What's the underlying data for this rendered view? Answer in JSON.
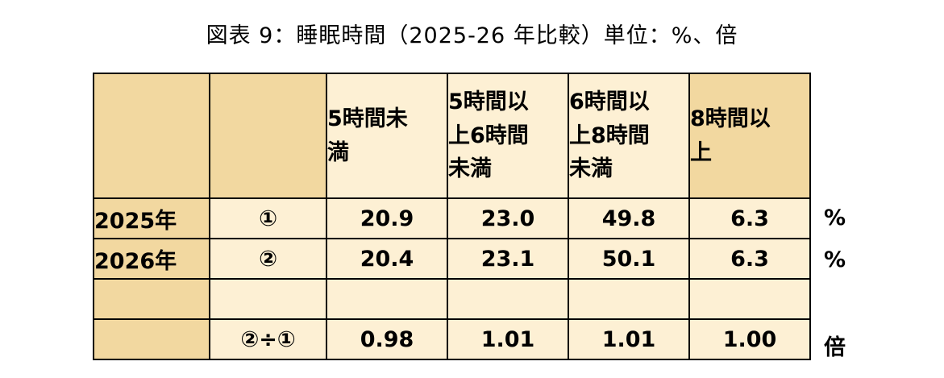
{
  "title": "図表 9：睡眠時間（2025-26 年比較）単位：%、倍",
  "headers": [
    "",
    "",
    "5時間未満",
    "5時間以上6時間未満",
    "6時間以上8時間未満",
    "8時間以上"
  ],
  "rows": [
    {
      "label": "2025年",
      "mark": "①",
      "values": [
        "20.9",
        "23.0",
        "49.8",
        "6.3"
      ],
      "unit": "%"
    },
    {
      "label": "2026年",
      "mark": "②",
      "values": [
        "20.4",
        "23.1",
        "50.1",
        "6.3"
      ],
      "unit": "%"
    },
    {
      "label": "",
      "mark": "",
      "values": [
        "",
        "",
        "",
        ""
      ],
      "unit": ""
    },
    {
      "label": "",
      "mark": "②÷①",
      "values": [
        "0.98",
        "1.01",
        "1.01",
        "1.00"
      ],
      "unit": "倍"
    }
  ],
  "colors": {
    "header_fill": "#f2d8a0",
    "cell_fill": "#fdf0d4",
    "border": "#000000"
  },
  "chart_data": {
    "type": "table",
    "title": "図表 9：睡眠時間（2025-26 年比較）単位：%、倍",
    "columns": [
      "5時間未満",
      "5時間以上6時間未満",
      "6時間以上8時間未満",
      "8時間以上"
    ],
    "rows": [
      {
        "name": "2025年 ①",
        "values": [
          20.9,
          23.0,
          49.8,
          6.3
        ],
        "unit": "%"
      },
      {
        "name": "2026年 ②",
        "values": [
          20.4,
          23.1,
          50.1,
          6.3
        ],
        "unit": "%"
      },
      {
        "name": "②÷①",
        "values": [
          0.98,
          1.01,
          1.01,
          1.0
        ],
        "unit": "倍"
      }
    ]
  }
}
